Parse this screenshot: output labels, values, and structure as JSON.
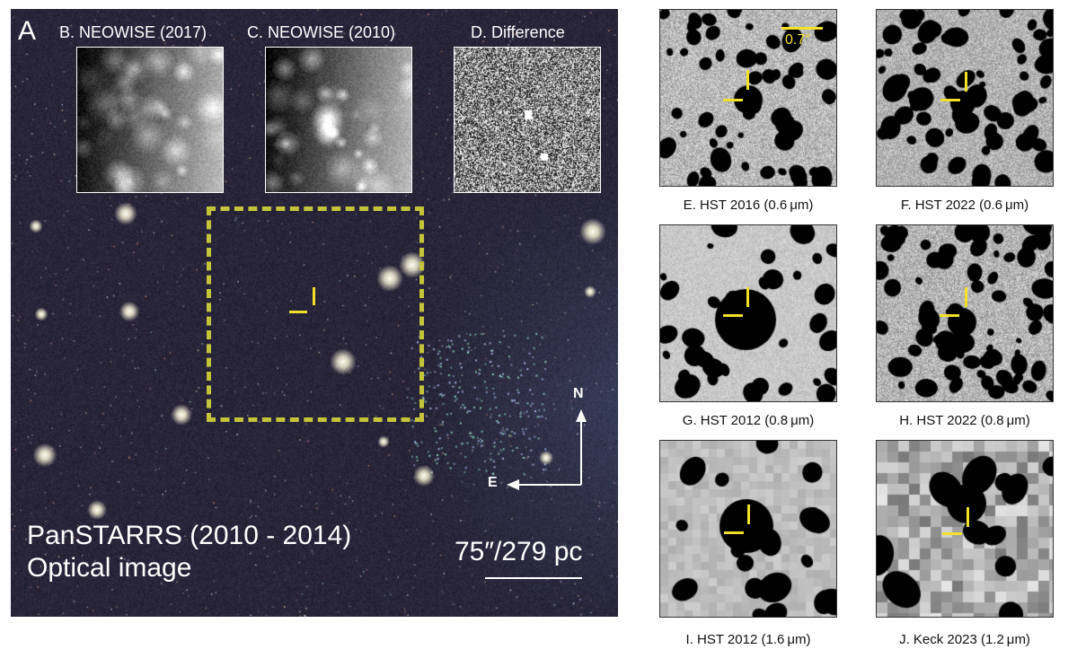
{
  "panel_a": {
    "letter": "A",
    "caption_line1": "PanSTARRS (2010 - 2014)",
    "caption_line2": "Optical image",
    "scale_label": "75″/279 pc",
    "compass_north": "N",
    "compass_east": "E"
  },
  "insets": [
    {
      "title": "B. NEOWISE (2017)"
    },
    {
      "title": "C. NEOWISE (2010)"
    },
    {
      "title": "D. Difference"
    }
  ],
  "tiles": [
    {
      "caption": "E. HST 2016 (0.6 μm)",
      "scale_label": "0.7″"
    },
    {
      "caption": "F. HST 2022 (0.6 μm)"
    },
    {
      "caption": "G. HST 2012 (0.8 μm)"
    },
    {
      "caption": "H. HST 2022 (0.8 μm)"
    },
    {
      "caption": "I. HST 2012 (1.6 μm)"
    },
    {
      "caption": "J. Keck 2023 (1.2 μm)"
    }
  ],
  "colors": {
    "marker": "#f2e12a",
    "dashed_box": "#c4c43a",
    "sky_background": "#24223a"
  }
}
